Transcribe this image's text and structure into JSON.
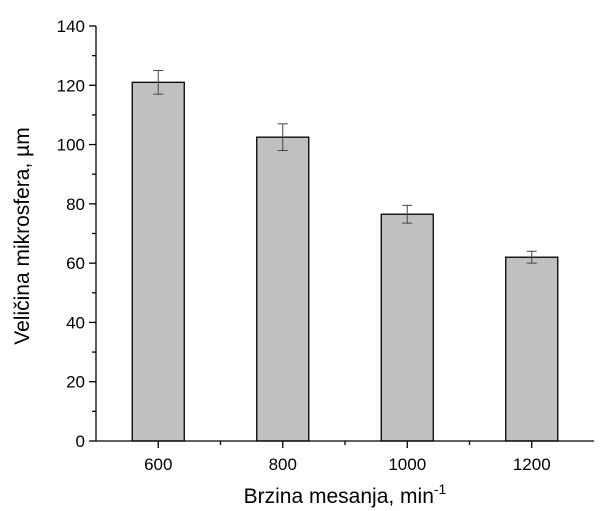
{
  "chart_data": {
    "type": "bar",
    "categories": [
      "600",
      "800",
      "1000",
      "1200"
    ],
    "values": [
      121,
      102.5,
      76.5,
      62
    ],
    "errors": [
      4,
      4.5,
      3,
      2
    ],
    "xlabel_main": "Brzina mesanja, min",
    "xlabel_sup": "-1",
    "ylabel": "Veličina mikrosfera, µm",
    "ylim": [
      0,
      140
    ],
    "yticks": [
      "0",
      "20",
      "40",
      "60",
      "80",
      "100",
      "120",
      "140"
    ],
    "grid": false,
    "bar_color": "#c0c0c0",
    "bar_edge_color": "#000000"
  }
}
